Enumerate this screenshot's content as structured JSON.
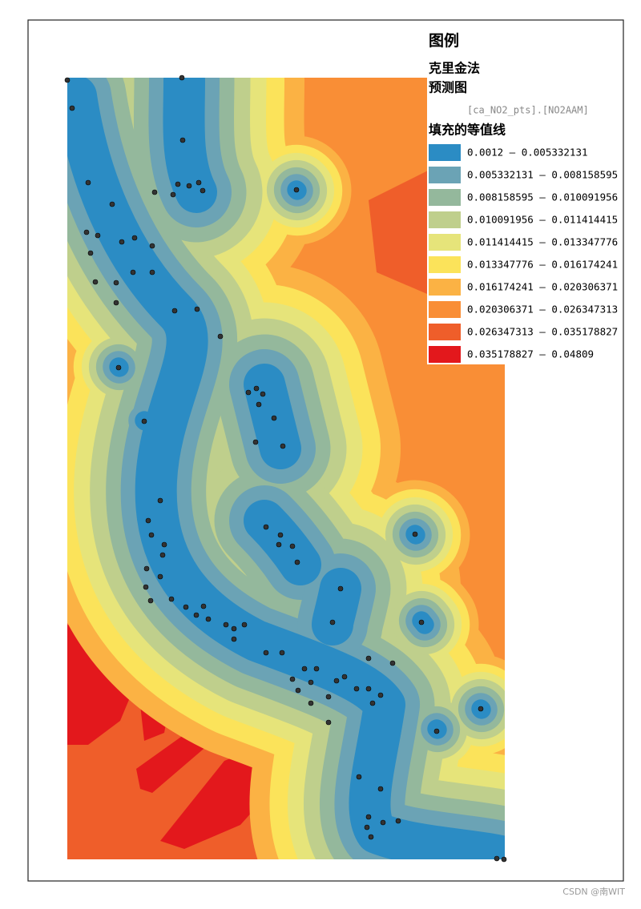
{
  "legend": {
    "title": "图例",
    "layer": "克里金法",
    "subtitle": "预测图",
    "field": "[ca_NO2_pts].[NO2AAM]",
    "fill_title": "填充的等值线",
    "classes": [
      {
        "label": "0.0012  –  0.005332131",
        "color": "#2b8cc4"
      },
      {
        "label": "0.005332131  –  0.008158595",
        "color": "#6ba3b5"
      },
      {
        "label": "0.008158595  –  0.010091956",
        "color": "#94b89c"
      },
      {
        "label": "0.010091956  –  0.011414415",
        "color": "#bfcf8c"
      },
      {
        "label": "0.011414415  –  0.013347776",
        "color": "#e6e47a"
      },
      {
        "label": "0.013347776  –  0.016174241",
        "color": "#fbe35a"
      },
      {
        "label": "0.016174241  –  0.020306371",
        "color": "#fbb244"
      },
      {
        "label": "0.020306371  –  0.026347313",
        "color": "#f98e36"
      },
      {
        "label": "0.026347313  –  0.035178827",
        "color": "#ef5e2a"
      },
      {
        "label": "0.035178827  –  0.04809",
        "color": "#e3181c"
      }
    ]
  },
  "watermark": "CSDN @南WIT"
}
